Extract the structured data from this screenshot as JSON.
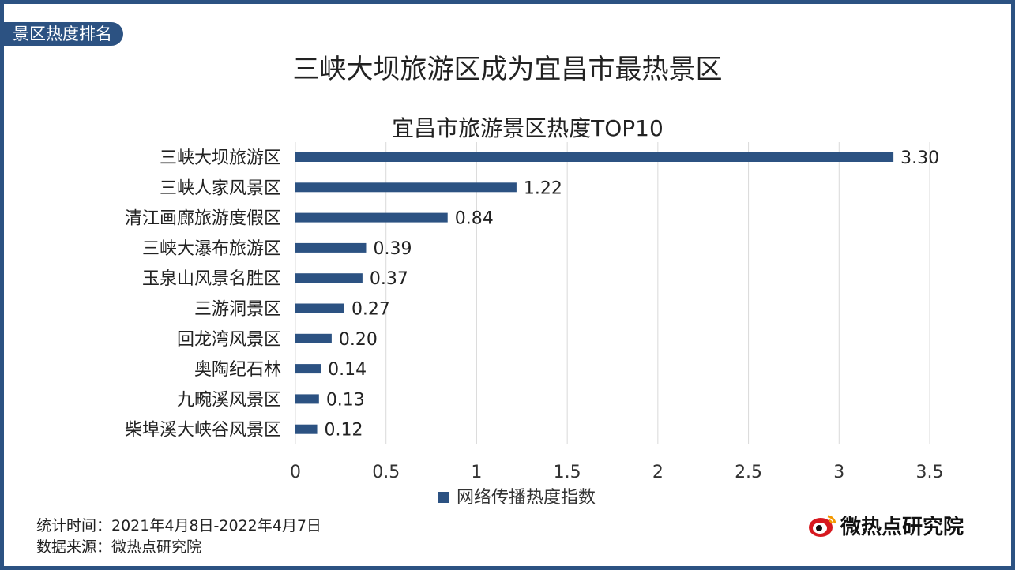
{
  "header": {
    "tag": "景区热度排名",
    "headline": "三峡大坝旅游区成为宜昌市最热景区"
  },
  "chart_data": {
    "type": "bar",
    "orientation": "horizontal",
    "title": "宜昌市旅游景区热度TOP10",
    "categories": [
      "三峡大坝旅游区",
      "三峡人家风景区",
      "清江画廊旅游度假区",
      "三峡大瀑布旅游区",
      "玉泉山风景名胜区",
      "三游洞景区",
      "回龙湾风景区",
      "奥陶纪石林",
      "九畹溪风景区",
      "柴埠溪大峡谷风景区"
    ],
    "series": [
      {
        "name": "网络传播热度指数",
        "values": [
          3.3,
          1.22,
          0.84,
          0.39,
          0.37,
          0.27,
          0.2,
          0.14,
          0.13,
          0.12
        ],
        "color": "#2c5282"
      }
    ],
    "value_labels": [
      "3.30",
      "1.22",
      "0.84",
      "0.39",
      "0.37",
      "0.27",
      "0.20",
      "0.14",
      "0.13",
      "0.12"
    ],
    "xlim": [
      0,
      3.5
    ],
    "xticks": [
      "0",
      "0.5",
      "1",
      "1.5",
      "2",
      "2.5",
      "3",
      "3.5"
    ],
    "xtick_values": [
      0,
      0.5,
      1,
      1.5,
      2,
      2.5,
      3,
      3.5
    ],
    "grid": true,
    "legend": "bottom"
  },
  "footer": {
    "period": "统计时间：2021年4月8日-2022年4月7日",
    "source": "数据来源：微热点研究院",
    "logo_text": "微热点研究院"
  },
  "colors": {
    "accent": "#2c5282",
    "logo_red": "#d7191f"
  }
}
